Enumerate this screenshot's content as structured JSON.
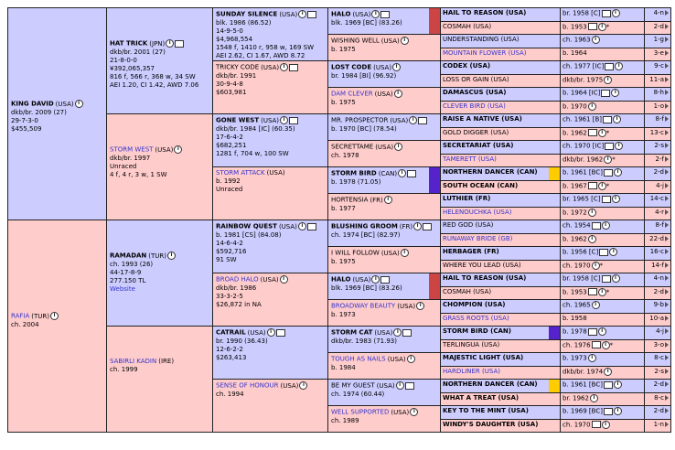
{
  "cells": [
    {
      "id": "g1-0",
      "name": "KING DAVID",
      "bold": true,
      "origin": "(USA)",
      "icons": "i",
      "lines": [
        "dkb/br. 2009 (27)",
        "29-7-3-0",
        "$455,509"
      ],
      "color": "#ccccff"
    },
    {
      "id": "g1-1",
      "name": "RAFIA",
      "bold": false,
      "link": true,
      "origin": "(TUR)",
      "icons": "i",
      "lines": [
        "ch. 2004"
      ],
      "color": "#ffcccc"
    },
    {
      "id": "g2-0",
      "name": "HAT TRICK",
      "bold": true,
      "origin": "(JPN)",
      "icons": "ib",
      "lines": [
        "dkb/br. 2001 (27)",
        "21-8-0-0",
        "¥392,065,357",
        "816 f, 566 r, 368 w, 34 SW",
        "AEI 1.20, CI 1.42, AWD 7.06"
      ],
      "color": "#ccccff"
    },
    {
      "id": "g2-1",
      "name": "STORM WEST",
      "bold": false,
      "link": true,
      "origin": "(USA)",
      "icons": "i",
      "lines": [
        "dkb/br. 1997",
        "Unraced",
        "4 f, 4 r, 3 w, 1 SW"
      ],
      "color": "#ffcccc"
    },
    {
      "id": "g2-2",
      "name": "RAMADAN",
      "bold": true,
      "origin": "(TUR)",
      "icons": "i",
      "lines": [
        "ch. 1993 (26)",
        "44-17-8-9",
        "277.150 TL",
        "Website"
      ],
      "linkline": 3,
      "color": "#ccccff"
    },
    {
      "id": "g2-3",
      "name": "SABIRLI KADIN",
      "bold": false,
      "link": true,
      "origin": "(IRE)",
      "icons": "",
      "lines": [
        "ch. 1999"
      ],
      "color": "#ffcccc"
    },
    {
      "id": "g3-0",
      "name": "SUNDAY SILENCE",
      "bold": true,
      "origin": "(USA)",
      "icons": "ib",
      "lines": [
        "blk. 1986 (86.52)",
        "14-9-5-0",
        "$4,968,554",
        "1548 f, 1410 r, 958 w, 169 SW",
        "AEI 2.62, CI 1.67, AWD 8.72"
      ],
      "color": "#ccccff"
    },
    {
      "id": "g3-1",
      "name": "TRICKY CODE",
      "bold": false,
      "origin": "(USA)",
      "icons": "ib",
      "lines": [
        "dkb/br. 1991",
        "30-9-4-8",
        "$603,981"
      ],
      "color": "#ffcccc"
    },
    {
      "id": "g3-2",
      "name": "GONE WEST",
      "bold": true,
      "origin": "(USA)",
      "icons": "ib",
      "lines": [
        "dkb/br. 1984 [IC] (60.35)",
        "17-6-4-2",
        "$682,251",
        "1281 f, 704 w, 100 SW"
      ],
      "color": "#ccccff"
    },
    {
      "id": "g3-3",
      "name": "STORM ATTACK",
      "bold": false,
      "link": true,
      "origin": "(USA)",
      "icons": "",
      "lines": [
        "b. 1992",
        "Unraced"
      ],
      "color": "#ffcccc"
    },
    {
      "id": "g3-4",
      "name": "RAINBOW QUEST",
      "bold": true,
      "origin": "(USA)",
      "icons": "ib",
      "lines": [
        "b. 1981 [CS] (84.08)",
        "14-6-4-2",
        "$592,716",
        "91 SW"
      ],
      "color": "#ccccff"
    },
    {
      "id": "g3-5",
      "name": "BROAD HALO",
      "bold": false,
      "link": true,
      "origin": "(USA)",
      "icons": "i",
      "lines": [
        "dkb/br. 1986",
        "33-3-2-5",
        "$26,872 in NA"
      ],
      "color": "#ffcccc"
    },
    {
      "id": "g3-6",
      "name": "CATRAIL",
      "bold": true,
      "origin": "(USA)",
      "icons": "ib",
      "lines": [
        "br. 1990 (36.43)",
        "12-6-2-2",
        "$263,413"
      ],
      "color": "#ccccff"
    },
    {
      "id": "g3-7",
      "name": "SENSE OF HONOUR",
      "bold": false,
      "link": true,
      "origin": "(USA)",
      "icons": "i",
      "lines": [
        "ch. 1994"
      ],
      "color": "#ffcccc"
    },
    {
      "id": "g4-0",
      "name": "HALO",
      "bold": true,
      "origin": "(USA)",
      "icons": "ib",
      "lines": [
        "blk. 1969 [BC] (83.26)"
      ],
      "color": "#ccccff",
      "bar": "#cc4444"
    },
    {
      "id": "g4-1",
      "name": "WISHING WELL",
      "bold": false,
      "origin": "(USA)",
      "icons": "i",
      "lines": [
        "b. 1975"
      ],
      "color": "#ffcccc"
    },
    {
      "id": "g4-2",
      "name": "LOST CODE",
      "bold": true,
      "origin": "(USA)",
      "icons": "i",
      "lines": [
        "br. 1984 [BI] (96.92)"
      ],
      "color": "#ccccff"
    },
    {
      "id": "g4-3",
      "name": "DAM CLEVER",
      "bold": false,
      "link": true,
      "origin": "(USA)",
      "icons": "i",
      "lines": [
        "b. 1975"
      ],
      "color": "#ffcccc"
    },
    {
      "id": "g4-4",
      "name": "MR. PROSPECTOR",
      "bold": false,
      "origin": "(USA)",
      "icons": "ib",
      "lines": [
        "b. 1970 [BC] (78.54)"
      ],
      "color": "#ccccff"
    },
    {
      "id": "g4-5",
      "name": "SECRETTAME",
      "bold": false,
      "origin": "(USA)",
      "icons": "i",
      "lines": [
        "ch. 1978"
      ],
      "color": "#ffcccc"
    },
    {
      "id": "g4-6",
      "name": "STORM BIRD",
      "bold": true,
      "origin": "(CAN)",
      "icons": "ib",
      "lines": [
        "b. 1978 (71.05)"
      ],
      "color": "#ccccff",
      "bar": "#5522cc"
    },
    {
      "id": "g4-7",
      "name": "HORTENSIA",
      "bold": false,
      "origin": "(FR)",
      "icons": "i",
      "lines": [
        "b. 1977"
      ],
      "color": "#ffcccc"
    },
    {
      "id": "g4-8",
      "name": "BLUSHING GROOM",
      "bold": true,
      "origin": "(FR)",
      "icons": "ib",
      "lines": [
        "ch. 1974 [BC] (82.97)"
      ],
      "color": "#ccccff"
    },
    {
      "id": "g4-9",
      "name": "I WILL FOLLOW",
      "bold": false,
      "origin": "(USA)",
      "icons": "i",
      "lines": [
        "b. 1975"
      ],
      "color": "#ffcccc"
    },
    {
      "id": "g4-10",
      "name": "HALO",
      "bold": true,
      "origin": "(USA)",
      "icons": "ib",
      "lines": [
        "blk. 1969 [BC] (83.26)"
      ],
      "color": "#ccccff",
      "bar": "#cc4444"
    },
    {
      "id": "g4-11",
      "name": "BROADWAY BEAUTY",
      "bold": false,
      "link": true,
      "origin": "(USA)",
      "icons": "i",
      "lines": [
        "b. 1973"
      ],
      "color": "#ffcccc"
    },
    {
      "id": "g4-12",
      "name": "STORM CAT",
      "bold": true,
      "origin": "(USA)",
      "icons": "ib",
      "lines": [
        "dkb/br. 1983 (71.93)"
      ],
      "color": "#ccccff"
    },
    {
      "id": "g4-13",
      "name": "TOUGH AS NAILS",
      "bold": false,
      "link": true,
      "origin": "(USA)",
      "icons": "i",
      "lines": [
        "b. 1984"
      ],
      "color": "#ffcccc"
    },
    {
      "id": "g4-14",
      "name": "BE MY GUEST",
      "bold": false,
      "origin": "(USA)",
      "icons": "ib",
      "lines": [
        "ch. 1974 (60.44)"
      ],
      "color": "#ccccff"
    },
    {
      "id": "g4-15",
      "name": "WELL SUPPORTED",
      "bold": false,
      "link": true,
      "origin": "(USA)",
      "icons": "i",
      "lines": [
        "ch. 1989"
      ],
      "color": "#ffcccc"
    }
  ],
  "gen5": [
    {
      "name": "HAIL TO REASON (USA)",
      "bold": true,
      "info": "br. 1958 [C]",
      "icons": "bi",
      "extra": "4-n",
      "color": "#ccccff"
    },
    {
      "name": "COSMAH (USA)",
      "bold": false,
      "info": "b. 1953",
      "icons": "bi*",
      "extra": "2-d",
      "color": "#ffcccc"
    },
    {
      "name": "UNDERSTANDING (USA)",
      "bold": false,
      "info": "ch. 1963",
      "icons": "i",
      "extra": "1-g",
      "color": "#ccccff"
    },
    {
      "name": "MOUNTAIN FLOWER (USA)",
      "bold": false,
      "link": true,
      "info": "b. 1964",
      "icons": "",
      "extra": "3-e",
      "color": "#ffcccc"
    },
    {
      "name": "CODEX (USA)",
      "bold": true,
      "info": "ch. 1977 [IC]",
      "icons": "bi",
      "extra": "9-c",
      "color": "#ccccff"
    },
    {
      "name": "LOSS OR GAIN (USA)",
      "bold": false,
      "info": "dkb/br. 1975",
      "icons": "i",
      "extra": "11-a",
      "color": "#ffcccc"
    },
    {
      "name": "DAMASCUS (USA)",
      "bold": true,
      "info": "b. 1964 [IC]",
      "icons": "bi",
      "extra": "8-h",
      "color": "#ccccff"
    },
    {
      "name": "CLEVER BIRD (USA)",
      "bold": false,
      "link": true,
      "info": "b. 1970",
      "icons": "i",
      "extra": "1-o",
      "color": "#ffcccc"
    },
    {
      "name": "RAISE A NATIVE (USA)",
      "bold": true,
      "info": "ch. 1961 [B]",
      "icons": "bi",
      "extra": "8-f",
      "color": "#ccccff"
    },
    {
      "name": "GOLD DIGGER (USA)",
      "bold": false,
      "info": "b. 1962",
      "icons": "bi*",
      "extra": "13-c",
      "color": "#ffcccc"
    },
    {
      "name": "SECRETARIAT (USA)",
      "bold": true,
      "info": "ch. 1970 [IC]",
      "icons": "bi",
      "extra": "2-s",
      "color": "#ccccff"
    },
    {
      "name": "TAMERETT (USA)",
      "bold": false,
      "link": true,
      "info": "dkb/br. 1962",
      "icons": "i*",
      "extra": "2-f",
      "color": "#ffcccc"
    },
    {
      "name": "NORTHERN DANCER (CAN)",
      "bold": true,
      "info": "b. 1961 [BC]",
      "icons": "bi",
      "extra": "2-d",
      "color": "#ccccff",
      "bar": "#ffcc00"
    },
    {
      "name": "SOUTH OCEAN (CAN)",
      "bold": true,
      "info": "b. 1967",
      "icons": "bi*",
      "extra": "4-j",
      "color": "#ffcccc"
    },
    {
      "name": "LUTHIER (FR)",
      "bold": true,
      "info": "br. 1965 [C]",
      "icons": "bi",
      "extra": "14-c",
      "color": "#ccccff"
    },
    {
      "name": "HELENOUCHKA (USA)",
      "bold": false,
      "link": true,
      "info": "b. 1972",
      "icons": "i",
      "extra": "4-r",
      "color": "#ffcccc"
    },
    {
      "name": "RED GOD (USA)",
      "bold": false,
      "info": "ch. 1954",
      "icons": "bi",
      "extra": "8-f",
      "color": "#ccccff"
    },
    {
      "name": "RUNAWAY BRIDE (GB)",
      "bold": false,
      "link": true,
      "info": "b. 1962",
      "icons": "i",
      "extra": "22-d",
      "color": "#ffcccc"
    },
    {
      "name": "HERBAGER (FR)",
      "bold": true,
      "info": "b. 1956 [C]",
      "icons": "bi",
      "extra": "16-c",
      "color": "#ccccff"
    },
    {
      "name": "WHERE YOU LEAD (USA)",
      "bold": false,
      "info": "ch. 1970",
      "icons": "i*",
      "extra": "14-f",
      "color": "#ffcccc"
    },
    {
      "name": "HAIL TO REASON (USA)",
      "bold": true,
      "info": "br. 1958 [C]",
      "icons": "bi",
      "extra": "4-n",
      "color": "#ccccff"
    },
    {
      "name": "COSMAH (USA)",
      "bold": false,
      "info": "b. 1953",
      "icons": "bi*",
      "extra": "2-d",
      "color": "#ffcccc"
    },
    {
      "name": "CHOMPION (USA)",
      "bold": true,
      "info": "ch. 1965",
      "icons": "i",
      "extra": "9-b",
      "color": "#ccccff"
    },
    {
      "name": "GRASS ROOTS (USA)",
      "bold": false,
      "link": true,
      "info": "b. 1958",
      "icons": "",
      "extra": "10-a",
      "color": "#ffcccc"
    },
    {
      "name": "STORM BIRD (CAN)",
      "bold": true,
      "info": "b. 1978",
      "icons": "bi",
      "extra": "4-j",
      "color": "#ccccff",
      "barLeft": "#5522cc"
    },
    {
      "name": "TERLINGUA (USA)",
      "bold": false,
      "info": "ch. 1976",
      "icons": "bi*",
      "extra": "3-o",
      "color": "#ffcccc"
    },
    {
      "name": "MAJESTIC LIGHT (USA)",
      "bold": true,
      "info": "b. 1973",
      "icons": "i",
      "extra": "8-c",
      "color": "#ccccff"
    },
    {
      "name": "HARDLINER (USA)",
      "bold": false,
      "link": true,
      "info": "dkb/br. 1974",
      "icons": "i",
      "extra": "2-s",
      "color": "#ffcccc"
    },
    {
      "name": "NORTHERN DANCER (CAN)",
      "bold": true,
      "info": "b. 1961 [BC]",
      "icons": "bi",
      "extra": "2-d",
      "color": "#ccccff",
      "bar": "#ffcc00"
    },
    {
      "name": "WHAT A TREAT (USA)",
      "bold": true,
      "info": "br. 1962",
      "icons": "i",
      "extra": "8-c",
      "color": "#ffcccc"
    },
    {
      "name": "KEY TO THE MINT (USA)",
      "bold": true,
      "info": "b. 1969 [BC]",
      "icons": "bi",
      "extra": "2-d",
      "color": "#ccccff"
    },
    {
      "name": "WINDY'S DAUGHTER (USA)",
      "bold": true,
      "info": "ch. 1970",
      "icons": "bi",
      "extra": "1-n",
      "color": "#ffcccc"
    }
  ]
}
